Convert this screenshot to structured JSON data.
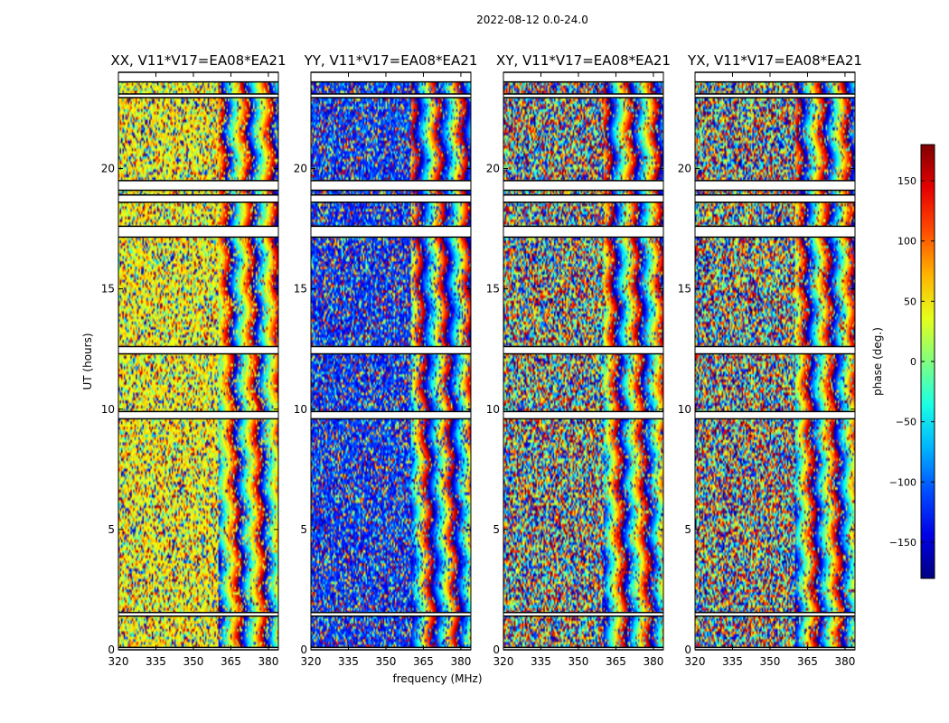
{
  "suptitle": "2022-08-12 0.0-24.0",
  "chart_data": {
    "type": "heatmap",
    "xlabel": "frequency (MHz)",
    "ylabel": "UT (hours)",
    "xlim": [
      320,
      384
    ],
    "ylim": [
      0,
      24
    ],
    "x_ticks": [
      "320",
      "335",
      "350",
      "365",
      "380"
    ],
    "y_ticks": [
      "0",
      "5",
      "10",
      "15",
      "20"
    ],
    "panels": [
      {
        "title": "XX, V11*V17=EA08*EA21",
        "phase_bias_low_freq": 45
      },
      {
        "title": "YY, V11*V17=EA08*EA21",
        "phase_bias_low_freq": -120
      },
      {
        "title": "XY, V11*V17=EA08*EA21",
        "phase_bias_low_freq": 0
      },
      {
        "title": "YX, V11*V17=EA08*EA21",
        "phase_bias_low_freq": 0
      }
    ],
    "colorbar": {
      "label": "phase (deg.)",
      "range": [
        -180,
        180
      ],
      "ticks": [
        "150",
        "100",
        "50",
        "0",
        "−50",
        "−100",
        "−150"
      ],
      "colormap": "jet"
    },
    "flagged_ut_ranges": [
      [
        23.6,
        24.0
      ],
      [
        22.95,
        23.1
      ],
      [
        19.1,
        19.5
      ],
      [
        18.6,
        18.9
      ],
      [
        17.15,
        17.6
      ],
      [
        12.3,
        12.6
      ],
      [
        9.6,
        9.9
      ],
      [
        1.4,
        1.55
      ],
      [
        0.0,
        0.1
      ]
    ]
  }
}
